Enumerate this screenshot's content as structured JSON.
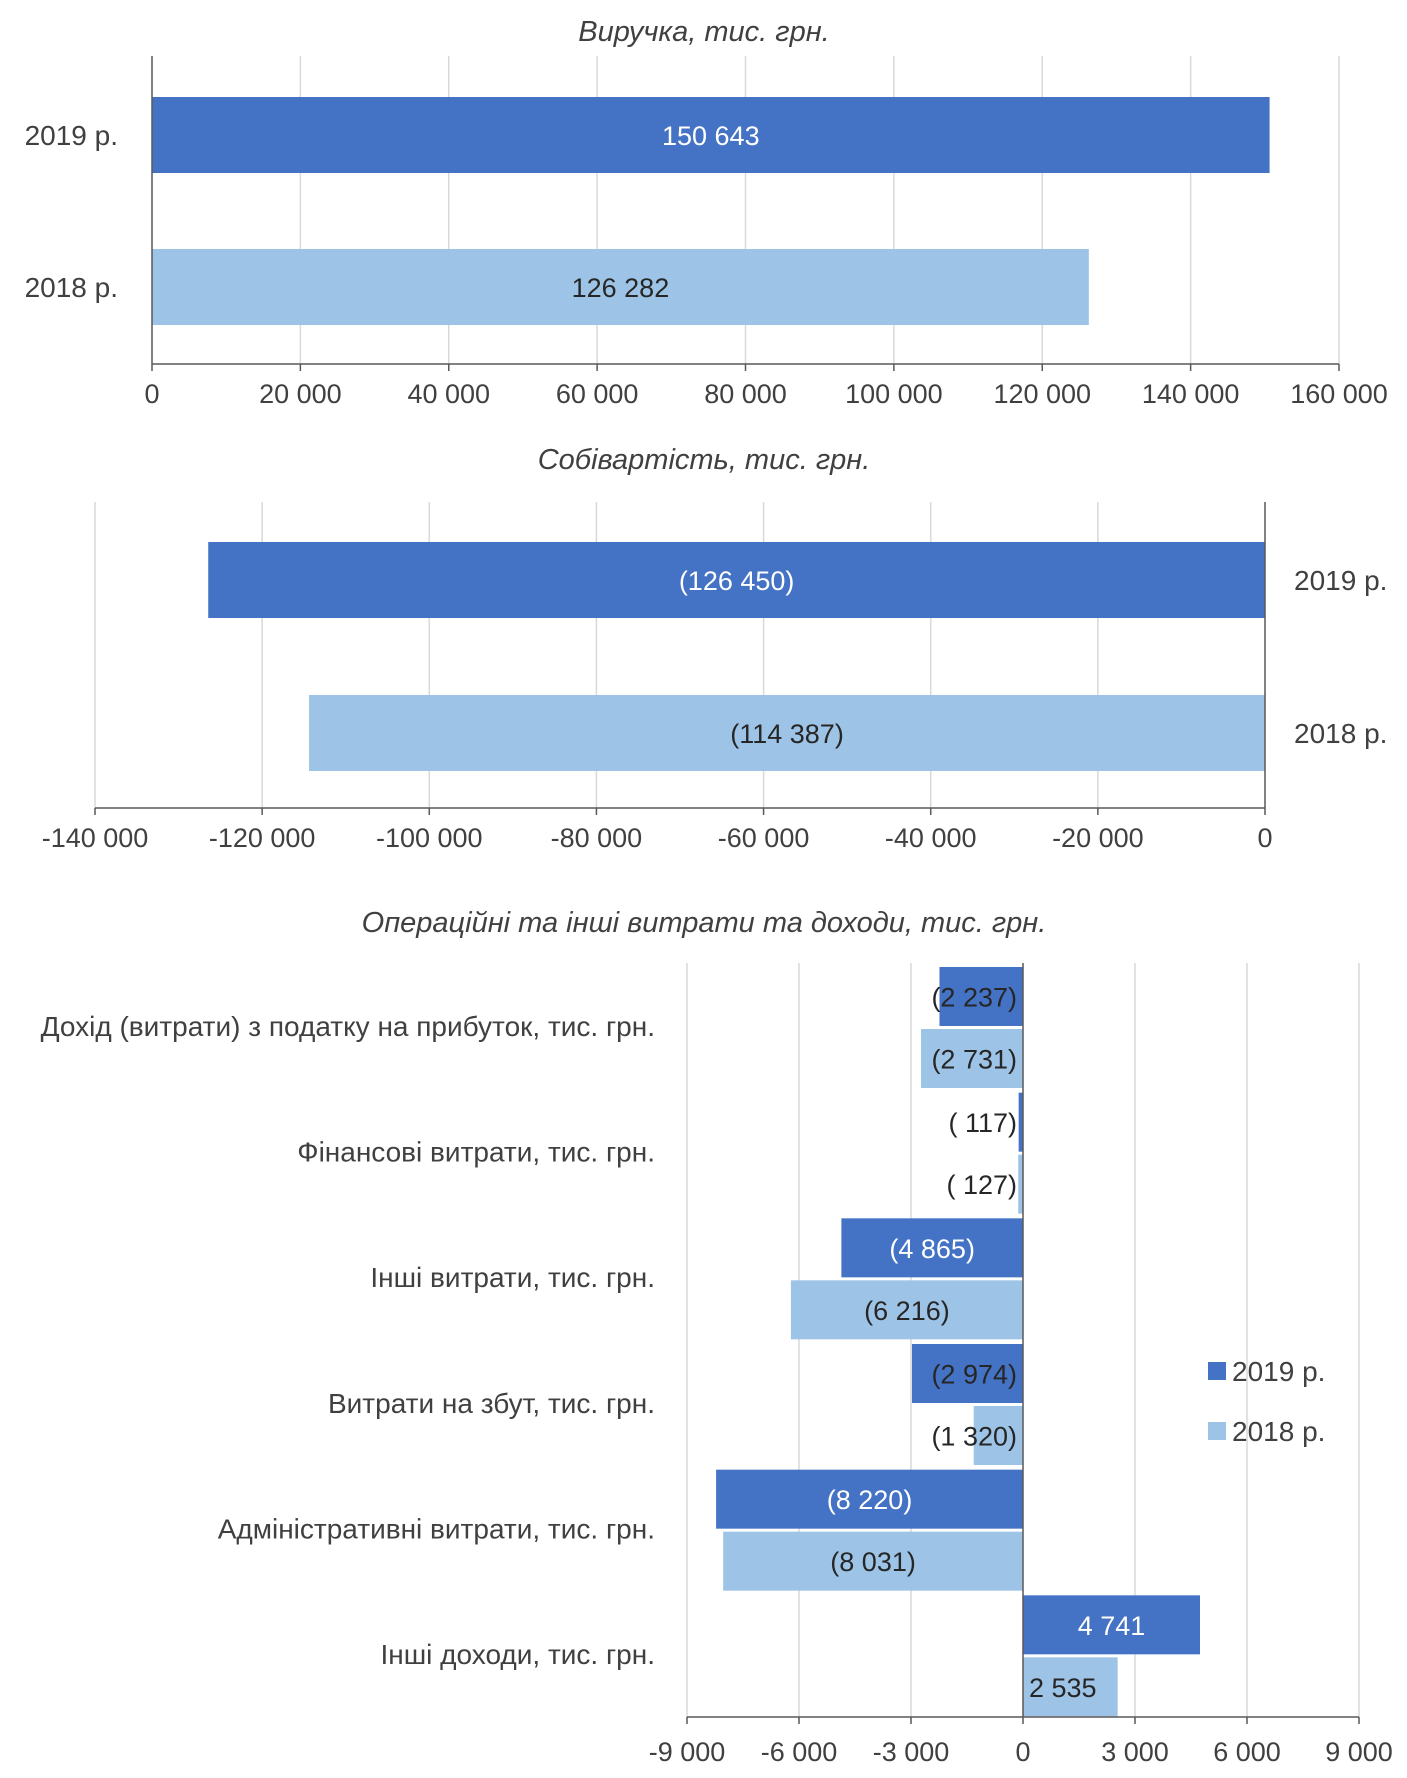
{
  "colors": {
    "y2019": "#4472c4",
    "y2018": "#9dc3e6",
    "grid": "#d9d9d9",
    "axis": "#595959",
    "label": "#404040",
    "inbar_dark": "#ffffff",
    "inbar_light": "#262626"
  },
  "chart_data": [
    {
      "type": "bar",
      "orientation": "horizontal",
      "title": "Виручка, тис. грн.",
      "categories": [
        "2019 р.",
        "2018 р."
      ],
      "values": [
        150643,
        126282
      ],
      "value_labels": [
        "150 643",
        "126 282"
      ],
      "xlim": [
        0,
        160000
      ],
      "ticks": [
        0,
        20000,
        40000,
        60000,
        80000,
        100000,
        120000,
        140000,
        160000
      ],
      "tick_labels": [
        "0",
        "20 000",
        "40 000",
        "60 000",
        "80 000",
        "100 000",
        "120 000",
        "140 000",
        "160 000"
      ],
      "grid": true,
      "category_labels_side": "left"
    },
    {
      "type": "bar",
      "orientation": "horizontal",
      "title": "Собівартість, тис. грн.",
      "categories": [
        "2019 р.",
        "2018 р."
      ],
      "values": [
        -126450,
        -114387
      ],
      "value_labels": [
        "(126 450)",
        "(114 387)"
      ],
      "xlim": [
        -140000,
        0
      ],
      "ticks": [
        -140000,
        -120000,
        -100000,
        -80000,
        -60000,
        -40000,
        -20000,
        0
      ],
      "tick_labels": [
        "-140 000",
        "-120 000",
        "-100 000",
        "-80 000",
        "-60 000",
        "-40 000",
        "-20 000",
        "0"
      ],
      "grid": true,
      "category_labels_side": "right"
    },
    {
      "type": "bar",
      "orientation": "horizontal",
      "title": "Операційні та інші витрати та доходи, тис. грн.",
      "categories": [
        "Дохід (витрати) з податку на прибуток, тис. грн.",
        "Фінансові витрати, тис. грн.",
        "Інші витрати, тис. грн.",
        "Витрати на збут, тис. грн.",
        "Адміністративні витрати, тис. грн.",
        "Інші доходи, тис. грн."
      ],
      "series": [
        {
          "name": "2019 р.",
          "values": [
            -2237,
            -117,
            -4865,
            -2974,
            -8220,
            4741
          ],
          "value_labels": [
            "(2 237)",
            "( 117)",
            "(4 865)",
            "(2 974)",
            "(8 220)",
            "4 741"
          ]
        },
        {
          "name": "2018 р.",
          "values": [
            -2731,
            -127,
            -6216,
            -1320,
            -8031,
            2535
          ],
          "value_labels": [
            "(2 731)",
            "( 127)",
            "(6 216)",
            "(1 320)",
            "(8 031)",
            "2 535"
          ]
        }
      ],
      "xlim": [
        -9000,
        9000
      ],
      "ticks": [
        -9000,
        -6000,
        -3000,
        0,
        3000,
        6000,
        9000
      ],
      "tick_labels": [
        "-9 000",
        "-6 000",
        "-3 000",
        "0",
        "3 000",
        "6 000",
        "9 000"
      ],
      "grid": true,
      "legend": "right"
    }
  ]
}
